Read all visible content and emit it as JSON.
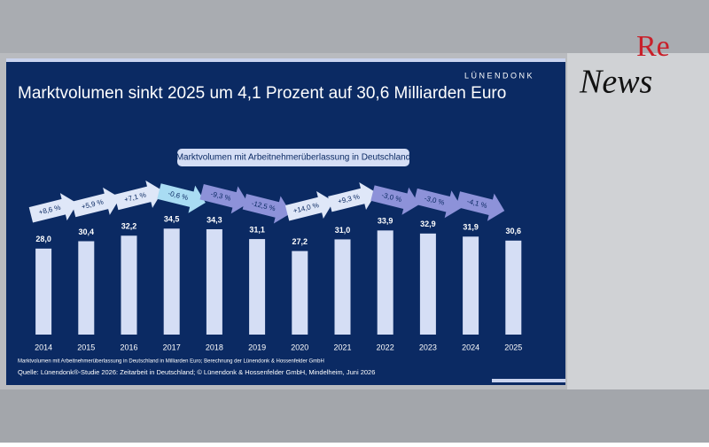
{
  "chart_data": {
    "type": "bar",
    "title": "Marktvolumen sinkt 2025 um 4,1 Prozent auf 30,6 Milliarden Euro",
    "subtitle": "Marktvolumen mit Arbeitnehmerüberlassung in Deutschland",
    "brand": "LÜNENDONK",
    "categories": [
      "2014",
      "2015",
      "2016",
      "2017",
      "2018",
      "2019",
      "2020",
      "2021",
      "2022",
      "2023",
      "2024",
      "2025"
    ],
    "values": [
      28.0,
      30.4,
      32.2,
      34.5,
      34.3,
      31.1,
      27.2,
      31.0,
      33.9,
      32.9,
      31.9,
      30.6
    ],
    "value_labels": [
      "28,0",
      "30,4",
      "32,2",
      "34,5",
      "34,3",
      "31,1",
      "27,2",
      "31,0",
      "33,9",
      "32,9",
      "31,9",
      "30,6"
    ],
    "color": "#d5def5",
    "changes": [
      8.6,
      5.9,
      7.1,
      -0.6,
      -9.3,
      -12.5,
      14.0,
      9.3,
      -3.0,
      -3.0,
      -4.1
    ],
    "change_labels": [
      "+8,6 %",
      "+5,9 %",
      "+7,1 %",
      "-0,6 %",
      "-9,3 %",
      "-12,5 %",
      "+14,0 %",
      "+9,3 %",
      "-3,0 %",
      "-3,0 %",
      "-4,1 %"
    ],
    "change_colors": [
      "#dfe7f8",
      "#dfe7f8",
      "#dfe7f8",
      "#a9dcf3",
      "#8d92d9",
      "#8d92d9",
      "#dfe7f8",
      "#dfe7f8",
      "#8d92d9",
      "#8d92d9",
      "#8d92d9"
    ],
    "footnote": "Marktvolumen mit Arbeitnehmerüberlassung in Deutschland in Milliarden Euro; Berechnung der Lünendonk & Hossenfelder GmbH",
    "source": "Quelle: Lünendonk®-Studie 2026: Zeitarbeit in Deutschland; © Lünendonk & Hossenfelder GmbH, Mindelheim, Juni 2026"
  },
  "overlay_logo": {
    "re": "Re",
    "news": "News"
  }
}
